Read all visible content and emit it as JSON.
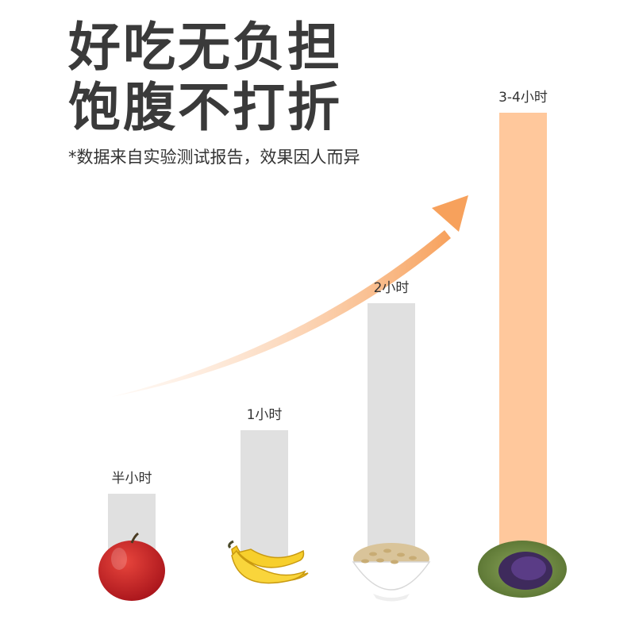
{
  "headline": {
    "line1": "好吃无负担",
    "line2": "饱腹不打折"
  },
  "note": "*数据来自实验测试报告，效果因人而异",
  "colors": {
    "bar_default": "#e0e0e0",
    "bar_highlight": "#ffc89c",
    "arrow": "#f7a15c",
    "headline": "#3a3a3a"
  },
  "chart_data": {
    "type": "bar",
    "categories": [
      "apple-icon",
      "banana-icon",
      "oats-bowl-icon",
      "purple-bread-icon"
    ],
    "values": [
      0.5,
      1,
      2,
      3.5
    ],
    "data_labels": [
      "半小时",
      "1小时",
      "2小时",
      "3-4小时"
    ],
    "highlight_index": 3,
    "ylim": [
      0,
      4
    ],
    "trend": "arrow rising left to right",
    "grid": false
  }
}
